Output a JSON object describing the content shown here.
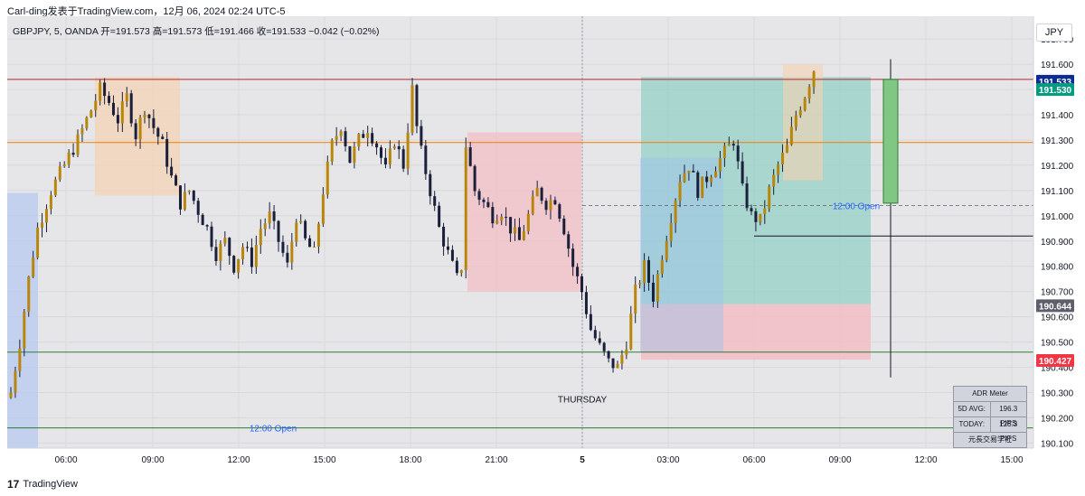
{
  "header": {
    "text": "Carl-ding发表于TradingView.com，12月 06, 2024 02:24 UTC-5"
  },
  "legend": {
    "text": "GBPJPY, 5, OANDA  开=191.573  高=191.573  低=191.466  收=191.533  −0.042 (−0.02%)"
  },
  "currency": "JPY",
  "brand": {
    "logo": "17",
    "name": "TradingView"
  },
  "adr": {
    "title": "ADR Meter",
    "rows": [
      {
        "label": "5D AVG:",
        "value": "196.3 PIPS"
      },
      {
        "label": "TODAY:",
        "value": "125.3 PIPS"
      }
    ],
    "footer": "元長交易学社"
  },
  "chart_data": {
    "type": "candlestick",
    "symbol": "GBPJPY",
    "ylim": [
      190.08,
      191.79
    ],
    "y_ticks": [
      191.7,
      191.6,
      191.5,
      191.4,
      191.3,
      191.2,
      191.1,
      191.0,
      190.9,
      190.8,
      190.7,
      190.6,
      190.5,
      190.4,
      190.3,
      190.2,
      190.1
    ],
    "x_ticks": [
      "06:00",
      "09:00",
      "12:00",
      "15:00",
      "18:00",
      "21:00",
      "5",
      "03:00",
      "06:00",
      "09:00",
      "12:00",
      "15:00"
    ],
    "day_label": "THURSDAY",
    "price_labels": [
      {
        "value": "191.533",
        "color": "#0d2b94"
      },
      {
        "value": "191.530",
        "color": "#089981"
      },
      {
        "value": "190.644",
        "color": "#5d606b"
      },
      {
        "value": "190.427",
        "color": "#f23645"
      }
    ],
    "horizontal_lines": [
      {
        "value": 191.54,
        "color": "#b22833"
      },
      {
        "value": 191.29,
        "color": "#f57c00"
      },
      {
        "value": 190.92,
        "color": "#131722"
      },
      {
        "value": 190.46,
        "color": "#2e7d32"
      },
      {
        "value": 190.16,
        "color": "#2e7d32"
      }
    ],
    "annotations": [
      {
        "text": "12:00 Open",
        "value": 191.04,
        "color": "#2962ff"
      },
      {
        "text": "12:00 Open",
        "value": 190.16,
        "color": "#2962ff"
      }
    ],
    "path": [
      [
        0,
        190.3
      ],
      [
        2,
        190.5
      ],
      [
        4,
        190.75
      ],
      [
        6,
        190.95
      ],
      [
        9,
        191.1
      ],
      [
        12,
        191.2
      ],
      [
        15,
        191.3
      ],
      [
        18,
        191.42
      ],
      [
        20,
        191.5
      ],
      [
        22,
        191.45
      ],
      [
        24,
        191.38
      ],
      [
        26,
        191.47
      ],
      [
        28,
        191.32
      ],
      [
        30,
        191.43
      ],
      [
        32,
        191.35
      ],
      [
        34,
        191.28
      ],
      [
        36,
        191.15
      ],
      [
        38,
        191.05
      ],
      [
        40,
        191.1
      ],
      [
        42,
        191.02
      ],
      [
        44,
        190.95
      ],
      [
        46,
        190.85
      ],
      [
        48,
        190.9
      ],
      [
        50,
        190.8
      ],
      [
        52,
        190.88
      ],
      [
        54,
        190.82
      ],
      [
        56,
        190.95
      ],
      [
        58,
        191.0
      ],
      [
        60,
        190.9
      ],
      [
        62,
        190.8
      ],
      [
        64,
        191.0
      ],
      [
        66,
        190.9
      ],
      [
        68,
        190.85
      ],
      [
        70,
        191.1
      ],
      [
        72,
        191.28
      ],
      [
        74,
        191.36
      ],
      [
        76,
        191.22
      ],
      [
        78,
        191.3
      ],
      [
        80,
        191.35
      ],
      [
        82,
        191.28
      ],
      [
        84,
        191.18
      ],
      [
        86,
        191.3
      ],
      [
        88,
        191.2
      ],
      [
        90,
        191.5
      ],
      [
        91,
        191.35
      ],
      [
        92,
        191.25
      ],
      [
        94,
        191.1
      ],
      [
        96,
        190.95
      ],
      [
        98,
        190.85
      ],
      [
        100,
        190.75
      ],
      [
        101,
        190.8
      ],
      [
        102,
        191.28
      ],
      [
        104,
        191.1
      ],
      [
        106,
        191.05
      ],
      [
        108,
        191.0
      ],
      [
        110,
        191.02
      ],
      [
        112,
        190.95
      ],
      [
        114,
        190.9
      ],
      [
        116,
        191.0
      ],
      [
        118,
        191.1
      ],
      [
        120,
        191.05
      ],
      [
        122,
        191.07
      ],
      [
        124,
        190.95
      ],
      [
        126,
        190.8
      ],
      [
        128,
        190.7
      ],
      [
        130,
        190.55
      ],
      [
        132,
        190.48
      ],
      [
        134,
        190.42
      ],
      [
        136,
        190.4
      ],
      [
        138,
        190.5
      ],
      [
        140,
        190.7
      ],
      [
        142,
        190.8
      ],
      [
        144,
        190.68
      ],
      [
        146,
        190.85
      ],
      [
        148,
        191.0
      ],
      [
        150,
        191.15
      ],
      [
        152,
        191.2
      ],
      [
        154,
        191.1
      ],
      [
        156,
        191.15
      ],
      [
        158,
        191.2
      ],
      [
        160,
        191.25
      ],
      [
        162,
        191.3
      ],
      [
        164,
        191.1
      ],
      [
        166,
        191.0
      ],
      [
        168,
        190.98
      ],
      [
        170,
        191.1
      ],
      [
        172,
        191.2
      ],
      [
        174,
        191.27
      ],
      [
        176,
        191.4
      ],
      [
        178,
        191.48
      ],
      [
        180,
        191.58
      ],
      [
        181,
        191.53
      ]
    ]
  }
}
